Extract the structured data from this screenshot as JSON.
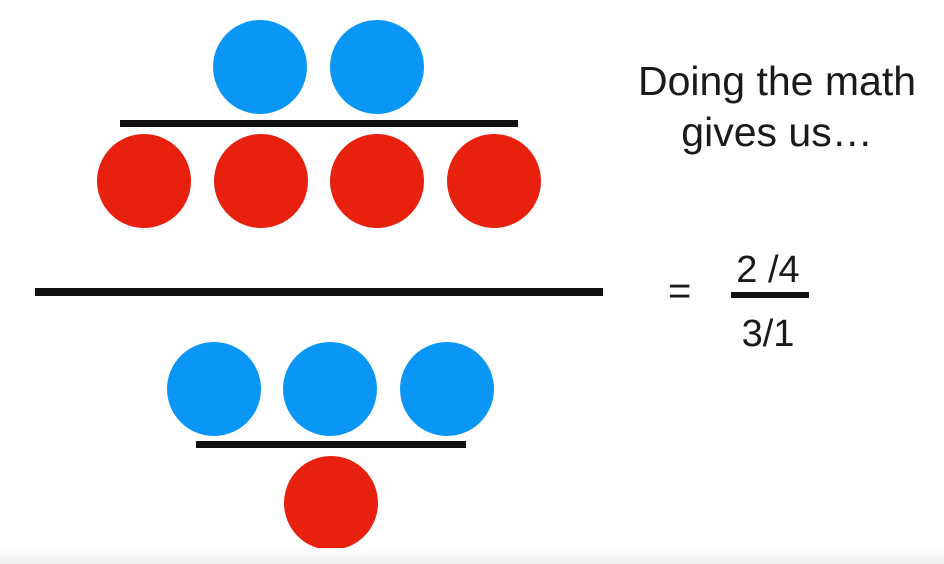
{
  "colors": {
    "blue": "#0a96f5",
    "red": "#e8210f",
    "line": "#111111"
  },
  "figure": {
    "top_fraction": {
      "numerator_count": 2,
      "denominator_count": 4
    },
    "bottom_fraction": {
      "numerator_count": 3,
      "denominator_count": 1
    }
  },
  "caption": {
    "line1": "Doing the math",
    "line2": "gives us…"
  },
  "result": {
    "equals": "=",
    "numerator": "2 /4",
    "denominator": "3/1"
  }
}
